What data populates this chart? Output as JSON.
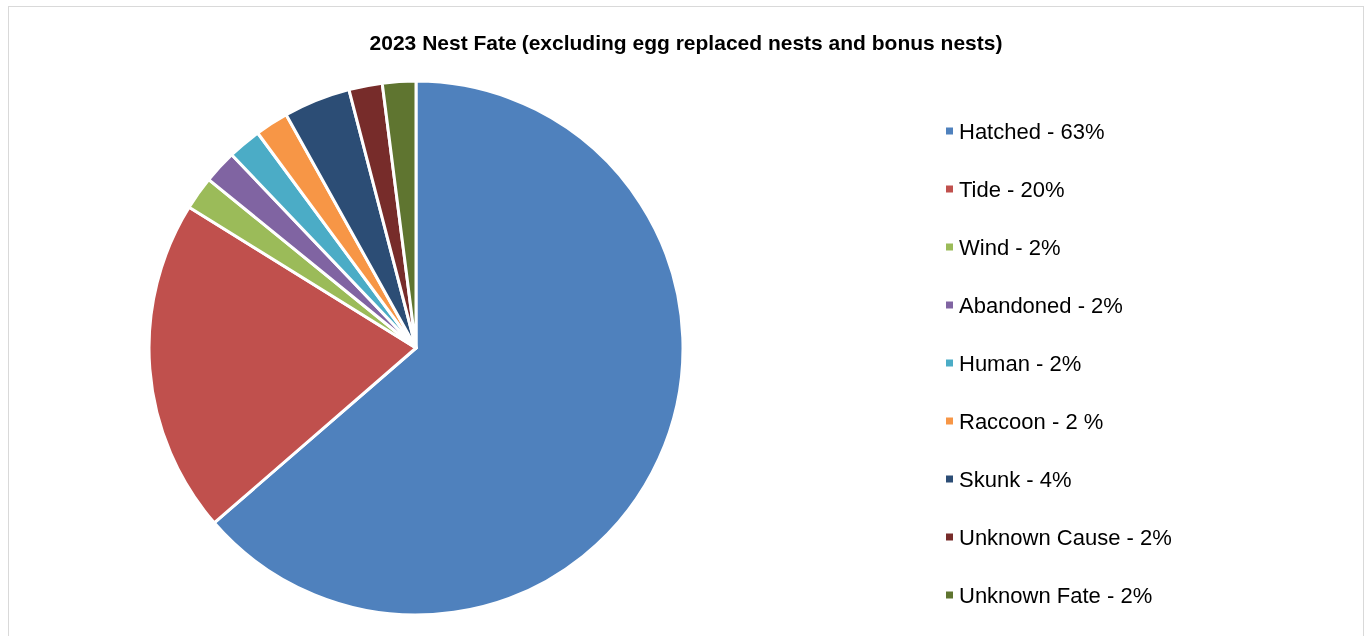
{
  "chart_data": {
    "type": "pie",
    "title": "2023 Nest Fate",
    "subtitle": "(excluding egg replaced nests and bonus nests)",
    "categories": [
      "Hatched - 63%",
      "Tide - 20%",
      "Wind - 2%",
      "Abandoned - 2%",
      "Human - 2%",
      "Raccoon - 2 %",
      "Skunk - 4%",
      "Unknown Cause - 2%",
      "Unknown Fate - 2%"
    ],
    "values": [
      63,
      20,
      2,
      2,
      2,
      2,
      4,
      2,
      2
    ],
    "colors": [
      "#4f81bd",
      "#c0504d",
      "#9bbb59",
      "#8064a2",
      "#4bacc6",
      "#f79646",
      "#2c4d75",
      "#772c2a",
      "#5f7530"
    ],
    "legend": "right"
  }
}
